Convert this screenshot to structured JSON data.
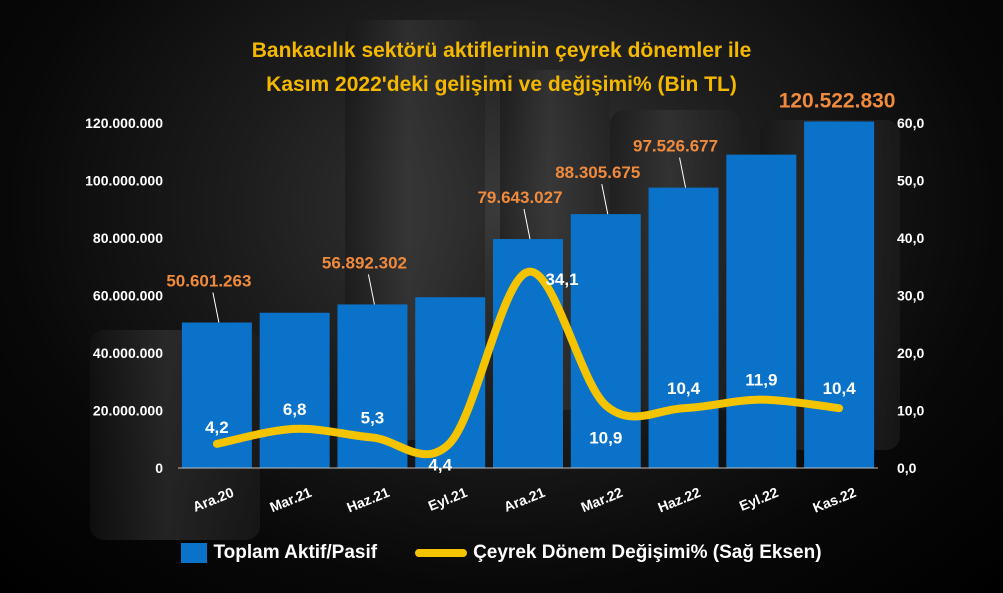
{
  "chart_data": {
    "type": "bar",
    "title_lines": [
      "Bankacılık sektörü aktiflerinin çeyrek dönemler ile",
      "Kasım 2022'deki gelişimi ve değişimi% (Bin TL)"
    ],
    "categories": [
      "Ara.20",
      "Mar.21",
      "Haz.21",
      "Eyl.21",
      "Ara.21",
      "Mar.22",
      "Haz.22",
      "Eyl.22",
      "Kas.22"
    ],
    "series": [
      {
        "name": "Toplam Aktif/Pasif",
        "type": "bar",
        "axis": "left",
        "color": "#0a72c8",
        "values": [
          50601263,
          54000000,
          56892302,
          59400000,
          79643027,
          88305675,
          97526677,
          109000000,
          120522830
        ],
        "data_labels": [
          "50.601.263",
          "",
          "56.892.302",
          "",
          "79.643.027",
          "88.305.675",
          "97.526.677",
          "",
          "120.522.830"
        ]
      },
      {
        "name": "Çeyrek Dönem Değişimi%  (Sağ Eksen)",
        "type": "line",
        "axis": "right",
        "color": "#f5c400",
        "values": [
          4.2,
          6.8,
          5.3,
          4.4,
          34.1,
          10.9,
          10.4,
          11.9,
          10.4
        ],
        "data_labels": [
          "4,2",
          "6,8",
          "5,3",
          "4,4",
          "34,1",
          "10,9",
          "10,4",
          "11,9",
          "10,4"
        ]
      }
    ],
    "left_axis": {
      "ylim": [
        0,
        120000000
      ],
      "ticks": [
        0,
        20000000,
        40000000,
        60000000,
        80000000,
        100000000,
        120000000
      ],
      "tick_labels": [
        "0",
        "20.000.000",
        "40.000.000",
        "60.000.000",
        "80.000.000",
        "100.000.000",
        "120.000.000"
      ]
    },
    "right_axis": {
      "ylim": [
        0,
        60
      ],
      "ticks": [
        0,
        10,
        20,
        30,
        40,
        50,
        60
      ],
      "tick_labels": [
        "0,0",
        "10,0",
        "20,0",
        "30,0",
        "40,0",
        "50,0",
        "60,0"
      ]
    },
    "grid": false,
    "legend": {
      "position": "bottom",
      "items": [
        "Toplam Aktif/Pasif",
        "Çeyrek Dönem Değişimi%  (Sağ Eksen)"
      ]
    },
    "colors": {
      "title": "#f5b800",
      "bar_label": "#f08a3c",
      "text": "#ffffff"
    }
  }
}
